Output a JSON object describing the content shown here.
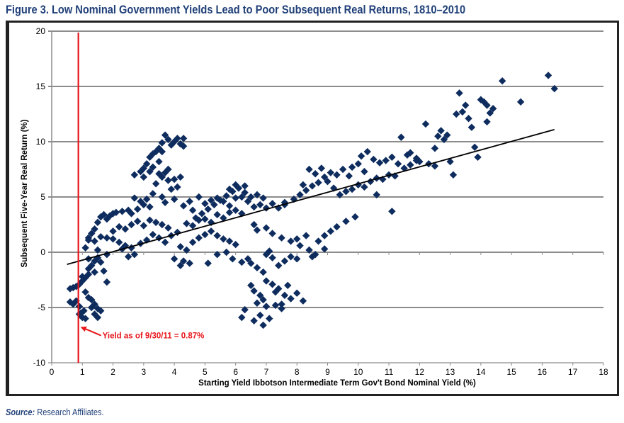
{
  "figure": {
    "title": "Figure 3. Low Nominal Government Yields Lead to Poor Subsequent Real Returns, 1810–2010",
    "source_label": "Source:",
    "source_text": " Research Affiliates."
  },
  "colors": {
    "title": "#1f3f78",
    "points": "#0e2d5e",
    "marker_line": "#e8161b",
    "trend": "#000000",
    "grid": "#8c8c8c"
  },
  "chart_data": {
    "type": "scatter",
    "title": "Figure 3. Low Nominal Government Yields Lead to Poor Subsequent Real Returns, 1810–2010",
    "xlabel": "Starting Yield Ibbotson Intermediate Term Gov't Bond Nominal Yield (%)",
    "ylabel": "Subsequent Five-Year Real Return (%)",
    "xlim": [
      0,
      18
    ],
    "ylim": [
      -10,
      20
    ],
    "xticks": [
      "0",
      "1",
      "2",
      "3",
      "4",
      "5",
      "6",
      "7",
      "8",
      "9",
      "10",
      "11",
      "12",
      "13",
      "14",
      "15",
      "16",
      "17",
      "18"
    ],
    "yticks": [
      "20",
      "15",
      "10",
      "5",
      "0",
      "-5",
      "-10"
    ],
    "grid": "horizontal",
    "legend": "none",
    "trendline": {
      "x": [
        0.5,
        16.4
      ],
      "y": [
        -1.1,
        11.1
      ]
    },
    "reference_line": {
      "x": 0.87,
      "label": "Yield as of 9/30/11 = 0.87%",
      "arrow_to_y": -6.7
    },
    "points": [
      [
        0.6,
        -4.5
      ],
      [
        0.7,
        -4.7
      ],
      [
        0.8,
        -4.4
      ],
      [
        0.9,
        -4.9
      ],
      [
        0.95,
        -5.5
      ],
      [
        1.0,
        -5.9
      ],
      [
        1.1,
        -6.0
      ],
      [
        1.05,
        -5.3
      ],
      [
        0.9,
        -5.6
      ],
      [
        0.6,
        -3.3
      ],
      [
        0.7,
        -3.2
      ],
      [
        0.8,
        -3.1
      ],
      [
        0.9,
        -2.9
      ],
      [
        1.0,
        -2.6
      ],
      [
        1.1,
        -2.3
      ],
      [
        1.0,
        -2.2
      ],
      [
        1.2,
        -2.0
      ],
      [
        1.1,
        -3.6
      ],
      [
        1.2,
        -4.1
      ],
      [
        1.3,
        -4.3
      ],
      [
        1.4,
        -4.7
      ],
      [
        1.5,
        -5.1
      ],
      [
        1.6,
        -5.3
      ],
      [
        1.4,
        -5.6
      ],
      [
        1.5,
        -5.9
      ],
      [
        1.3,
        -5.0
      ],
      [
        1.2,
        -1.5
      ],
      [
        1.3,
        -1.2
      ],
      [
        1.4,
        -0.8
      ],
      [
        1.5,
        -0.5
      ],
      [
        1.6,
        -0.9
      ],
      [
        1.2,
        -0.6
      ],
      [
        1.7,
        -1.7
      ],
      [
        1.8,
        -2.7
      ],
      [
        1.4,
        -1.8
      ],
      [
        1.1,
        0.4
      ],
      [
        1.2,
        1.3
      ],
      [
        1.3,
        1.7
      ],
      [
        1.4,
        2.1
      ],
      [
        1.5,
        2.7
      ],
      [
        1.6,
        3.2
      ],
      [
        1.7,
        3.4
      ],
      [
        1.8,
        3.0
      ],
      [
        1.9,
        3.3
      ],
      [
        2.0,
        3.5
      ],
      [
        2.1,
        3.6
      ],
      [
        2.3,
        3.7
      ],
      [
        2.5,
        3.8
      ],
      [
        2.6,
        3.5
      ],
      [
        2.8,
        3.9
      ],
      [
        3.0,
        4.3
      ],
      [
        3.2,
        4.1
      ],
      [
        2.9,
        4.6
      ],
      [
        2.7,
        4.9
      ],
      [
        1.2,
        1.1
      ],
      [
        1.4,
        1.0
      ],
      [
        1.6,
        1.4
      ],
      [
        1.8,
        1.3
      ],
      [
        2.0,
        1.2
      ],
      [
        2.2,
        0.9
      ],
      [
        2.4,
        0.6
      ],
      [
        2.6,
        0.4
      ],
      [
        1.5,
        0.2
      ],
      [
        1.8,
        -0.2
      ],
      [
        2.0,
        1.9
      ],
      [
        2.2,
        2.3
      ],
      [
        2.4,
        2.1
      ],
      [
        2.6,
        2.5
      ],
      [
        2.8,
        2.8
      ],
      [
        3.0,
        2.4
      ],
      [
        3.2,
        2.9
      ],
      [
        3.4,
        2.7
      ],
      [
        3.6,
        2.5
      ],
      [
        3.8,
        2.2
      ],
      [
        2.3,
        0.3
      ],
      [
        2.5,
        -0.4
      ],
      [
        2.7,
        -0.2
      ],
      [
        2.9,
        0.8
      ],
      [
        3.1,
        1.1
      ],
      [
        3.3,
        1.6
      ],
      [
        3.5,
        1.3
      ],
      [
        3.7,
        0.9
      ],
      [
        3.9,
        1.5
      ],
      [
        4.1,
        1.8
      ],
      [
        2.7,
        7.0
      ],
      [
        2.9,
        7.3
      ],
      [
        3.0,
        7.6
      ],
      [
        3.1,
        8.0
      ],
      [
        3.2,
        8.6
      ],
      [
        3.3,
        8.9
      ],
      [
        3.4,
        9.1
      ],
      [
        3.5,
        9.4
      ],
      [
        3.6,
        9.9
      ],
      [
        3.7,
        10.6
      ],
      [
        3.8,
        10.2
      ],
      [
        3.9,
        9.7
      ],
      [
        4.0,
        10.0
      ],
      [
        4.1,
        10.3
      ],
      [
        4.2,
        9.8
      ],
      [
        4.3,
        10.3
      ],
      [
        4.3,
        9.6
      ],
      [
        3.6,
        9.1
      ],
      [
        3.2,
        7.3
      ],
      [
        3.5,
        7.1
      ],
      [
        3.6,
        6.8
      ],
      [
        3.7,
        7.2
      ],
      [
        3.8,
        6.5
      ],
      [
        3.4,
        6.2
      ],
      [
        3.3,
        7.7
      ],
      [
        3.0,
        6.8
      ],
      [
        4.0,
        6.6
      ],
      [
        4.2,
        6.8
      ],
      [
        3.8,
        7.5
      ],
      [
        3.5,
        8.2
      ],
      [
        3.9,
        5.7
      ],
      [
        4.1,
        5.9
      ],
      [
        3.3,
        5.3
      ],
      [
        3.1,
        4.8
      ],
      [
        3.6,
        5.0
      ],
      [
        3.7,
        4.5
      ],
      [
        4.0,
        4.8
      ],
      [
        4.3,
        4.2
      ],
      [
        4.5,
        4.6
      ],
      [
        4.8,
        5.0
      ],
      [
        4.6,
        3.8
      ],
      [
        4.7,
        3.1
      ],
      [
        4.9,
        3.5
      ],
      [
        5.1,
        3.9
      ],
      [
        5.3,
        4.3
      ],
      [
        5.5,
        4.7
      ],
      [
        5.7,
        5.1
      ],
      [
        5.9,
        5.5
      ],
      [
        6.1,
        5.8
      ],
      [
        6.3,
        5.4
      ],
      [
        6.5,
        5.0
      ],
      [
        6.7,
        5.2
      ],
      [
        6.9,
        4.9
      ],
      [
        6.4,
        4.6
      ],
      [
        6.6,
        4.1
      ],
      [
        6.8,
        4.3
      ],
      [
        7.0,
        4.0
      ],
      [
        7.2,
        4.4
      ],
      [
        7.4,
        4.0
      ],
      [
        7.6,
        4.3
      ],
      [
        5.0,
        4.4
      ],
      [
        5.2,
        4.7
      ],
      [
        5.4,
        4.9
      ],
      [
        5.6,
        4.6
      ],
      [
        5.8,
        4.2
      ],
      [
        6.0,
        4.9
      ],
      [
        6.2,
        5.0
      ],
      [
        6.0,
        6.1
      ],
      [
        5.8,
        5.7
      ],
      [
        6.3,
        6.0
      ],
      [
        4.4,
        2.6
      ],
      [
        4.6,
        2.4
      ],
      [
        4.8,
        2.9
      ],
      [
        5.0,
        3.0
      ],
      [
        5.2,
        2.7
      ],
      [
        5.4,
        3.4
      ],
      [
        5.6,
        3.1
      ],
      [
        5.8,
        3.6
      ],
      [
        6.0,
        3.8
      ],
      [
        6.2,
        3.5
      ],
      [
        4.2,
        0.5
      ],
      [
        4.4,
        0.2
      ],
      [
        4.6,
        0.9
      ],
      [
        4.8,
        1.3
      ],
      [
        5.0,
        1.6
      ],
      [
        5.2,
        1.9
      ],
      [
        5.4,
        1.5
      ],
      [
        5.6,
        1.2
      ],
      [
        5.8,
        1.0
      ],
      [
        6.0,
        0.7
      ],
      [
        4.0,
        -0.6
      ],
      [
        4.2,
        -1.2
      ],
      [
        4.3,
        -0.8
      ],
      [
        4.5,
        -1.0
      ],
      [
        5.1,
        -1.0
      ],
      [
        5.4,
        -0.2
      ],
      [
        5.7,
        0.0
      ],
      [
        5.9,
        -0.6
      ],
      [
        6.2,
        -0.9
      ],
      [
        6.4,
        -0.6
      ],
      [
        6.5,
        -1.0
      ],
      [
        6.7,
        -1.4
      ],
      [
        6.9,
        -1.8
      ],
      [
        7.0,
        -0.2
      ],
      [
        7.1,
        0.1
      ],
      [
        7.2,
        -0.5
      ],
      [
        7.4,
        -1.2
      ],
      [
        7.6,
        -0.8
      ],
      [
        7.8,
        -0.4
      ],
      [
        8.0,
        -0.6
      ],
      [
        6.6,
        2.5
      ],
      [
        6.7,
        2.0
      ],
      [
        7.0,
        2.2
      ],
      [
        7.2,
        1.7
      ],
      [
        7.5,
        1.3
      ],
      [
        7.8,
        1.0
      ],
      [
        8.1,
        0.6
      ],
      [
        8.4,
        0.2
      ],
      [
        8.6,
        -0.2
      ],
      [
        8.9,
        0.3
      ],
      [
        7.0,
        -2.6
      ],
      [
        7.2,
        -2.9
      ],
      [
        7.4,
        -3.3
      ],
      [
        7.6,
        -3.9
      ],
      [
        7.8,
        -4.2
      ],
      [
        8.0,
        -3.7
      ],
      [
        8.2,
        -4.4
      ],
      [
        7.5,
        -4.7
      ],
      [
        7.3,
        -3.6
      ],
      [
        7.7,
        -3.0
      ],
      [
        6.5,
        -3.0
      ],
      [
        6.6,
        -3.5
      ],
      [
        6.8,
        -3.9
      ],
      [
        6.9,
        -4.3
      ],
      [
        7.0,
        -4.9
      ],
      [
        6.8,
        -5.7
      ],
      [
        6.9,
        -6.6
      ],
      [
        6.6,
        -6.2
      ],
      [
        7.1,
        -6.0
      ],
      [
        6.2,
        -5.9
      ],
      [
        6.3,
        -5.2
      ],
      [
        6.7,
        -4.6
      ],
      [
        7.3,
        -4.8
      ],
      [
        7.5,
        -5.1
      ],
      [
        8.5,
        -0.4
      ],
      [
        8.7,
        1.0
      ],
      [
        8.9,
        1.5
      ],
      [
        9.1,
        1.9
      ],
      [
        9.3,
        2.3
      ],
      [
        9.6,
        2.8
      ],
      [
        9.9,
        3.2
      ],
      [
        8.3,
        1.5
      ],
      [
        8.0,
        1.2
      ],
      [
        7.6,
        4.5
      ],
      [
        7.9,
        4.8
      ],
      [
        8.1,
        5.2
      ],
      [
        8.3,
        5.6
      ],
      [
        8.5,
        6.0
      ],
      [
        8.7,
        6.3
      ],
      [
        8.9,
        6.8
      ],
      [
        9.1,
        7.2
      ],
      [
        9.3,
        7.0
      ],
      [
        9.5,
        7.5
      ],
      [
        9.7,
        6.9
      ],
      [
        8.4,
        7.5
      ],
      [
        8.6,
        7.1
      ],
      [
        8.8,
        7.6
      ],
      [
        9.0,
        6.4
      ],
      [
        9.2,
        5.8
      ],
      [
        8.2,
        6.1
      ],
      [
        9.4,
        5.2
      ],
      [
        9.6,
        5.5
      ],
      [
        9.8,
        5.7
      ],
      [
        10.0,
        6.1
      ],
      [
        10.2,
        5.9
      ],
      [
        10.4,
        6.4
      ],
      [
        10.6,
        6.7
      ],
      [
        10.8,
        6.6
      ],
      [
        11.0,
        7.0
      ],
      [
        11.2,
        6.9
      ],
      [
        10.1,
        8.7
      ],
      [
        10.3,
        9.1
      ],
      [
        10.5,
        8.4
      ],
      [
        10.7,
        8.1
      ],
      [
        10.9,
        8.3
      ],
      [
        11.1,
        8.6
      ],
      [
        11.3,
        8.0
      ],
      [
        11.5,
        7.6
      ],
      [
        11.7,
        7.9
      ],
      [
        11.9,
        8.3
      ],
      [
        9.8,
        7.7
      ],
      [
        10.0,
        8.0
      ],
      [
        10.2,
        7.3
      ],
      [
        10.6,
        5.2
      ],
      [
        11.1,
        3.7
      ],
      [
        11.4,
        10.4
      ],
      [
        11.7,
        9.0
      ],
      [
        12.0,
        8.2
      ],
      [
        12.3,
        8.0
      ],
      [
        12.5,
        7.8
      ],
      [
        12.2,
        11.6
      ],
      [
        12.5,
        9.4
      ],
      [
        12.6,
        10.5
      ],
      [
        12.8,
        10.2
      ],
      [
        13.0,
        8.2
      ],
      [
        13.1,
        7.0
      ],
      [
        12.7,
        11.0
      ],
      [
        13.2,
        12.5
      ],
      [
        13.3,
        14.4
      ],
      [
        13.4,
        12.7
      ],
      [
        13.6,
        12.1
      ],
      [
        13.7,
        11.3
      ],
      [
        13.8,
        9.5
      ],
      [
        13.9,
        8.6
      ],
      [
        14.0,
        13.8
      ],
      [
        14.1,
        13.6
      ],
      [
        14.2,
        13.3
      ],
      [
        14.3,
        12.6
      ],
      [
        14.4,
        13.0
      ],
      [
        14.2,
        11.8
      ],
      [
        14.7,
        15.5
      ],
      [
        15.3,
        13.6
      ],
      [
        16.2,
        16.0
      ],
      [
        16.4,
        14.8
      ],
      [
        12.9,
        10.6
      ],
      [
        13.5,
        13.3
      ],
      [
        11.9,
        8.5
      ],
      [
        11.6,
        8.8
      ]
    ]
  }
}
